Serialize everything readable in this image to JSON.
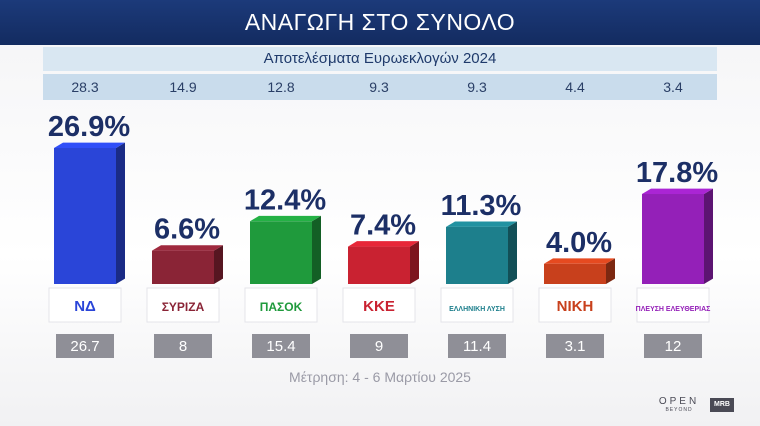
{
  "chart_data": {
    "type": "bar",
    "title": "ΑΝΑΓΩΓΗ ΣΤΟ ΣΥΝΟΛΟ",
    "subtitle": "Αποτελέσματα Ευρωεκλογών 2024",
    "categories": [
      "ΝΔ",
      "ΣΥΡΙΖΑ",
      "ΠΑΣΟΚ",
      "ΚΚΕ",
      "ΕΛΛΗΝΙΚΗ ΛΥΣΗ",
      "ΝΙΚΗ",
      "ΠΛΕΥΣΗ ΕΛΕΥΘΕΡΙΑΣ"
    ],
    "value_labels": [
      "26.9%",
      "6.6%",
      "12.4%",
      "7.4%",
      "11.3%",
      "4.0%",
      "17.8%"
    ],
    "series": [
      {
        "values": [
          26.9,
          6.6,
          12.4,
          7.4,
          11.3,
          4.0,
          17.8
        ]
      }
    ],
    "reference_row_label": "Αποτελέσματα Ευρωεκλογών 2024",
    "reference_values": [
      "28.3",
      "14.9",
      "12.8",
      "9.3",
      "9.3",
      "4.4",
      "3.4"
    ],
    "bottom_values": [
      "26.7",
      "8",
      "15.4",
      "9",
      "11.4",
      "3.1",
      "12"
    ],
    "colors": [
      "#2a45d8",
      "#8a2436",
      "#1f9a3c",
      "#c92231",
      "#1d7f8c",
      "#c8401c",
      "#9420b8"
    ],
    "ylim": [
      0,
      30
    ],
    "grid": false,
    "legend": "none"
  },
  "party_logos": [
    {
      "icon": "nd-logo-icon",
      "text": "ΝΔ"
    },
    {
      "icon": "syriza-logo-icon",
      "text": "ΣΥΡΙΖΑ"
    },
    {
      "icon": "pasok-logo-icon",
      "text": "ΠΑΣΟΚ"
    },
    {
      "icon": "kke-logo-icon",
      "text": "ΚΚΕ"
    },
    {
      "icon": "elliniki-lysi-logo-icon",
      "text": "ΕΛΛΗΝΙΚΗ ΛΥΣΗ"
    },
    {
      "icon": "niki-logo-icon",
      "text": "ΝΙΚΗ"
    },
    {
      "icon": "plefsi-logo-icon",
      "text": "ΠΛΕΥΣΗ ΕΛΕΥΘΕΡΙΑΣ"
    }
  ],
  "footer": {
    "note": "Μέτρηση: 4 - 6 Μαρτίου 2025",
    "open_logo": "OPEN",
    "open_sub": "BEYOND",
    "mrb_logo": "MRB"
  }
}
